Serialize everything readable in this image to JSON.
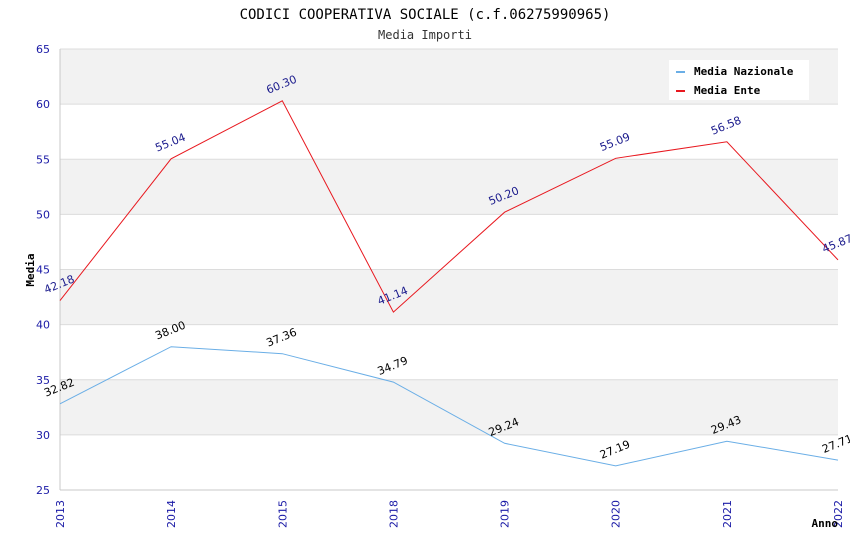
{
  "chart_data": {
    "type": "line",
    "title": "CODICI COOPERATIVA SOCIALE (c.f.06275990965)",
    "subtitle": "Media Importi",
    "xlabel": "Anno",
    "ylabel": "Media",
    "categories": [
      "2013",
      "2014",
      "2015",
      "2018",
      "2019",
      "2020",
      "2021",
      "2022"
    ],
    "ylim": [
      25,
      65
    ],
    "yticks": [
      25,
      30,
      35,
      40,
      45,
      50,
      55,
      60,
      65
    ],
    "ytick_labels": [
      "25",
      "30",
      "35",
      "40",
      "45",
      "50",
      "55",
      "60",
      "65"
    ],
    "grid": true,
    "legend_position": "top-right",
    "series": [
      {
        "name": "Media Nazionale",
        "color": "#6aaee6",
        "label_color": "#000000",
        "values": [
          32.82,
          38.0,
          37.36,
          34.79,
          29.24,
          27.19,
          29.43,
          27.71
        ],
        "labels": [
          "32.82",
          "38.00",
          "37.36",
          "34.79",
          "29.24",
          "27.19",
          "29.43",
          "27.71"
        ]
      },
      {
        "name": "Media Ente",
        "color": "#e8181f",
        "label_color": "#1a1a8c",
        "values": [
          42.18,
          55.04,
          60.3,
          41.14,
          50.2,
          55.09,
          56.58,
          45.87
        ],
        "labels": [
          "42.18",
          "55.04",
          "60.30",
          "41.14",
          "50.20",
          "55.09",
          "56.58",
          "45.87"
        ]
      }
    ]
  }
}
